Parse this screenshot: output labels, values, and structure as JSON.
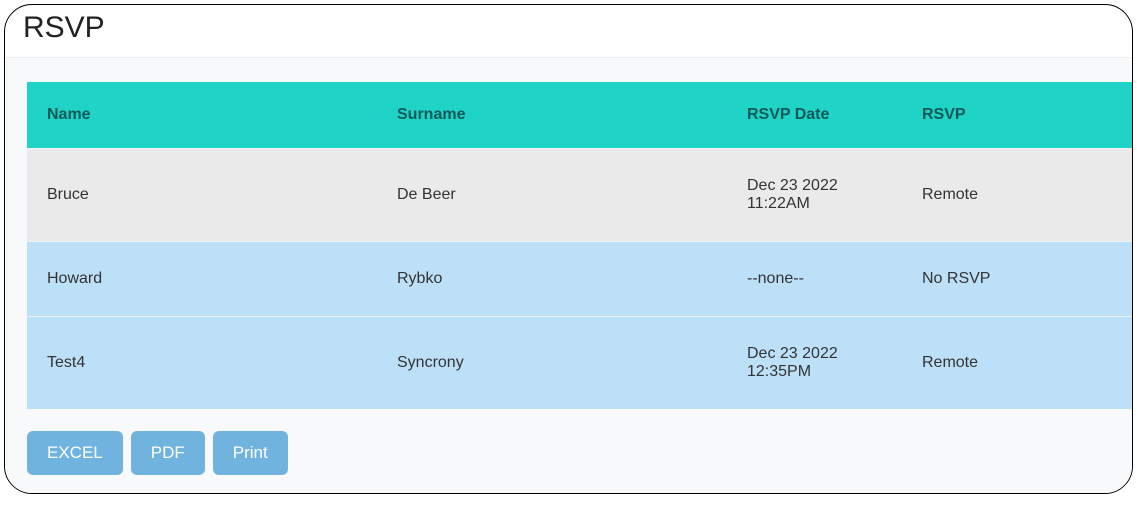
{
  "header": {
    "title": "RSVP"
  },
  "table": {
    "columns": [
      "Name",
      "Surname",
      "RSVP Date",
      "RSVP"
    ],
    "rows": [
      [
        "Bruce",
        "De Beer",
        "Dec 23 2022 11:22AM",
        "Remote"
      ],
      [
        "Howard",
        "Rybko",
        "--none--",
        "No RSVP"
      ],
      [
        "Test4",
        "Syncrony",
        "Dec 23 2022 12:35PM",
        "Remote"
      ]
    ],
    "header_bg": "#1fd3c6",
    "header_text_color": "#0d5a5a",
    "row_odd_bg": "#eaeaea",
    "row_even_bg": "#bde0f9"
  },
  "buttons": {
    "excel": "EXCEL",
    "pdf": "PDF",
    "print": "Print",
    "bg": "#6fb3de",
    "text_color": "#ffffff"
  }
}
